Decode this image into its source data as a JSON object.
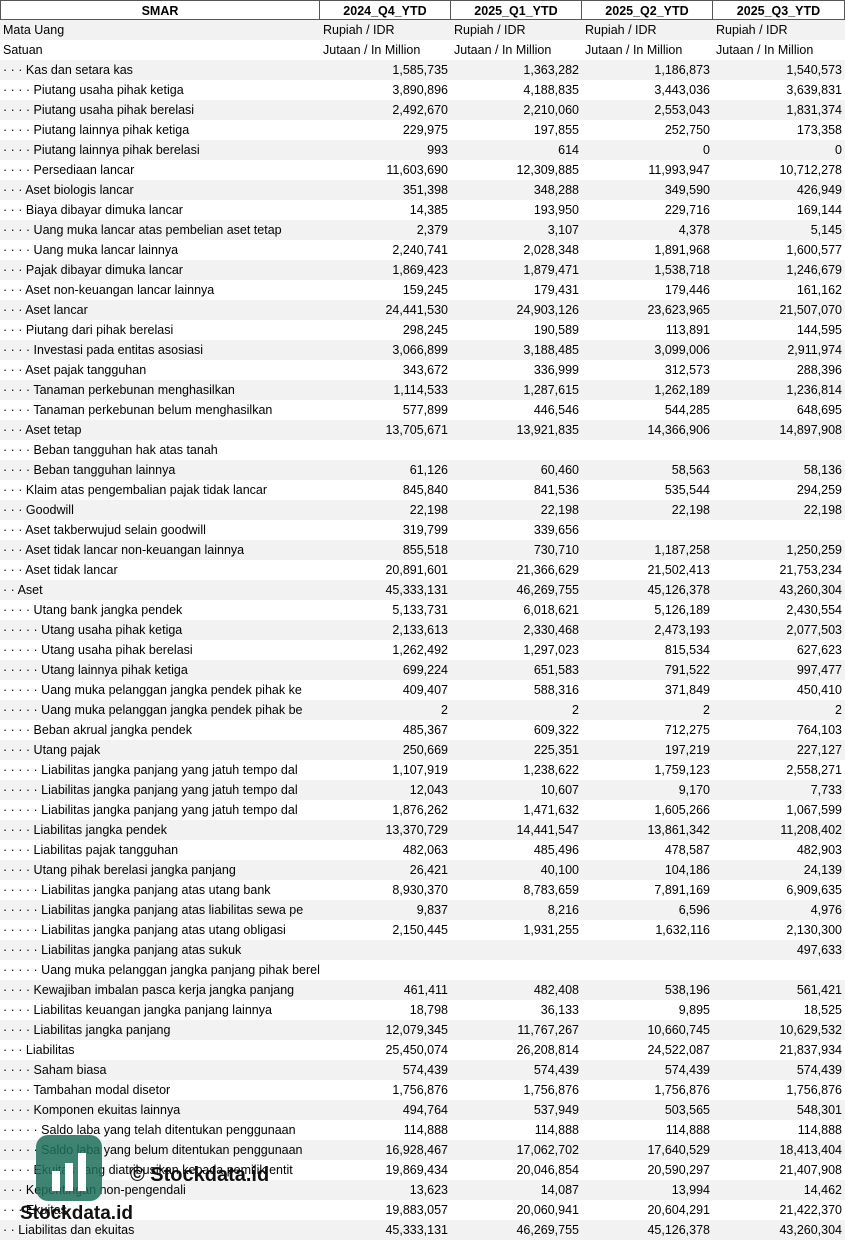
{
  "table": {
    "header": [
      "SMAR",
      "2024_Q4_YTD",
      "2025_Q1_YTD",
      "2025_Q2_YTD",
      "2025_Q3_YTD"
    ],
    "meta": [
      [
        "Mata Uang",
        "Rupiah / IDR",
        "Rupiah / IDR",
        "Rupiah / IDR",
        "Rupiah / IDR"
      ],
      [
        "Satuan",
        "Jutaan / In Million",
        "Jutaan / In Million",
        "Jutaan / In Million",
        "Jutaan / In Million"
      ]
    ],
    "rows": [
      [
        "· · · Kas dan setara kas",
        "1,585,735",
        "1,363,282",
        "1,186,873",
        "1,540,573"
      ],
      [
        "· · · · Piutang usaha pihak ketiga",
        "3,890,896",
        "4,188,835",
        "3,443,036",
        "3,639,831"
      ],
      [
        "· · · · Piutang usaha pihak berelasi",
        "2,492,670",
        "2,210,060",
        "2,553,043",
        "1,831,374"
      ],
      [
        "· · · · Piutang lainnya pihak ketiga",
        "229,975",
        "197,855",
        "252,750",
        "173,358"
      ],
      [
        "· · · · Piutang lainnya pihak berelasi",
        "993",
        "614",
        "0",
        "0"
      ],
      [
        "· · · · Persediaan lancar",
        "11,603,690",
        "12,309,885",
        "11,993,947",
        "10,712,278"
      ],
      [
        "· · · Aset biologis lancar",
        "351,398",
        "348,288",
        "349,590",
        "426,949"
      ],
      [
        "· · · Biaya dibayar dimuka lancar",
        "14,385",
        "193,950",
        "229,716",
        "169,144"
      ],
      [
        "· · · · Uang muka lancar atas pembelian aset tetap",
        "2,379",
        "3,107",
        "4,378",
        "5,145"
      ],
      [
        "· · · · Uang muka lancar lainnya",
        "2,240,741",
        "2,028,348",
        "1,891,968",
        "1,600,577"
      ],
      [
        "· · · Pajak dibayar dimuka lancar",
        "1,869,423",
        "1,879,471",
        "1,538,718",
        "1,246,679"
      ],
      [
        "· · · Aset non-keuangan lancar lainnya",
        "159,245",
        "179,431",
        "179,446",
        "161,162"
      ],
      [
        "· · · Aset lancar",
        "24,441,530",
        "24,903,126",
        "23,623,965",
        "21,507,070"
      ],
      [
        "· · · Piutang dari pihak berelasi",
        "298,245",
        "190,589",
        "113,891",
        "144,595"
      ],
      [
        "· · · · Investasi pada entitas asosiasi",
        "3,066,899",
        "3,188,485",
        "3,099,006",
        "2,911,974"
      ],
      [
        "· · · Aset pajak tangguhan",
        "343,672",
        "336,999",
        "312,573",
        "288,396"
      ],
      [
        "· · · · Tanaman perkebunan menghasilkan",
        "1,114,533",
        "1,287,615",
        "1,262,189",
        "1,236,814"
      ],
      [
        "· · · · Tanaman perkebunan belum menghasilkan",
        "577,899",
        "446,546",
        "544,285",
        "648,695"
      ],
      [
        "· · · Aset tetap",
        "13,705,671",
        "13,921,835",
        "14,366,906",
        "14,897,908"
      ],
      [
        "· · · · Beban tangguhan hak atas tanah",
        null,
        null,
        null,
        null
      ],
      [
        "· · · · Beban tangguhan lainnya",
        "61,126",
        "60,460",
        "58,563",
        "58,136"
      ],
      [
        "· · · Klaim atas pengembalian pajak tidak lancar",
        "845,840",
        "841,536",
        "535,544",
        "294,259"
      ],
      [
        "· · · Goodwill",
        "22,198",
        "22,198",
        "22,198",
        "22,198"
      ],
      [
        "· · · Aset takberwujud selain goodwill",
        "319,799",
        "339,656",
        null,
        null
      ],
      [
        "· · · Aset tidak lancar non-keuangan lainnya",
        "855,518",
        "730,710",
        "1,187,258",
        "1,250,259"
      ],
      [
        "· · · Aset tidak lancar",
        "20,891,601",
        "21,366,629",
        "21,502,413",
        "21,753,234"
      ],
      [
        "· · Aset",
        "45,333,131",
        "46,269,755",
        "45,126,378",
        "43,260,304"
      ],
      [
        "· · · · Utang bank jangka pendek",
        "5,133,731",
        "6,018,621",
        "5,126,189",
        "2,430,554"
      ],
      [
        "· · · · · Utang usaha pihak ketiga",
        "2,133,613",
        "2,330,468",
        "2,473,193",
        "2,077,503"
      ],
      [
        "· · · · · Utang usaha pihak berelasi",
        "1,262,492",
        "1,297,023",
        "815,534",
        "627,623"
      ],
      [
        "· · · · · Utang lainnya pihak ketiga",
        "699,224",
        "651,583",
        "791,522",
        "997,477"
      ],
      [
        "· · · · · Uang muka pelanggan jangka pendek pihak ke",
        "409,407",
        "588,316",
        "371,849",
        "450,410"
      ],
      [
        "· · · · · Uang muka pelanggan jangka pendek pihak be",
        "2",
        "2",
        "2",
        "2"
      ],
      [
        "· · · · Beban akrual jangka pendek",
        "485,367",
        "609,322",
        "712,275",
        "764,103"
      ],
      [
        "· · · · Utang pajak",
        "250,669",
        "225,351",
        "197,219",
        "227,127"
      ],
      [
        "· · · · · Liabilitas jangka panjang yang jatuh tempo dal",
        "1,107,919",
        "1,238,622",
        "1,759,123",
        "2,558,271"
      ],
      [
        "· · · · · Liabilitas jangka panjang yang jatuh tempo dal",
        "12,043",
        "10,607",
        "9,170",
        "7,733"
      ],
      [
        "· · · · · Liabilitas jangka panjang yang jatuh tempo dal",
        "1,876,262",
        "1,471,632",
        "1,605,266",
        "1,067,599"
      ],
      [
        "· · · · Liabilitas jangka pendek",
        "13,370,729",
        "14,441,547",
        "13,861,342",
        "11,208,402"
      ],
      [
        "· · · · Liabilitas pajak tangguhan",
        "482,063",
        "485,496",
        "478,587",
        "482,903"
      ],
      [
        "· · · · Utang pihak berelasi jangka panjang",
        "26,421",
        "40,100",
        "104,186",
        "24,139"
      ],
      [
        "· · · · · Liabilitas jangka panjang atas utang bank",
        "8,930,370",
        "8,783,659",
        "7,891,169",
        "6,909,635"
      ],
      [
        "· · · · · Liabilitas jangka panjang atas liabilitas sewa pe",
        "9,837",
        "8,216",
        "6,596",
        "4,976"
      ],
      [
        "· · · · · Liabilitas jangka panjang atas utang obligasi",
        "2,150,445",
        "1,931,255",
        "1,632,116",
        "2,130,300"
      ],
      [
        "· · · · · Liabilitas jangka panjang atas sukuk",
        null,
        null,
        null,
        "497,633"
      ],
      [
        "· · · · · Uang muka pelanggan jangka panjang pihak berelasi",
        null,
        null,
        null,
        null
      ],
      [
        "· · · · Kewajiban imbalan pasca kerja jangka panjang",
        "461,411",
        "482,408",
        "538,196",
        "561,421"
      ],
      [
        "· · · · Liabilitas keuangan jangka panjang lainnya",
        "18,798",
        "36,133",
        "9,895",
        "18,525"
      ],
      [
        "· · · · Liabilitas jangka panjang",
        "12,079,345",
        "11,767,267",
        "10,660,745",
        "10,629,532"
      ],
      [
        "· · · Liabilitas",
        "25,450,074",
        "26,208,814",
        "24,522,087",
        "21,837,934"
      ],
      [
        "· · · · Saham biasa",
        "574,439",
        "574,439",
        "574,439",
        "574,439"
      ],
      [
        "· · · · Tambahan modal disetor",
        "1,756,876",
        "1,756,876",
        "1,756,876",
        "1,756,876"
      ],
      [
        "· · · · Komponen ekuitas lainnya",
        "494,764",
        "537,949",
        "503,565",
        "548,301"
      ],
      [
        "· · · · · Saldo laba yang telah ditentukan penggunaan",
        "114,888",
        "114,888",
        "114,888",
        "114,888"
      ],
      [
        "· · · · · Saldo laba yang belum ditentukan penggunaan",
        "16,928,467",
        "17,062,702",
        "17,640,529",
        "18,413,404"
      ],
      [
        "· · · · Ekuitas yang diatribusikan kepada pemilik entit",
        "19,869,434",
        "20,046,854",
        "20,590,297",
        "21,407,908"
      ],
      [
        "· · · Kepentingan non-pengendali",
        "13,623",
        "14,087",
        "13,994",
        "14,462"
      ],
      [
        "· · · Ekuitas",
        "19,883,057",
        "20,060,941",
        "20,604,291",
        "21,422,370"
      ],
      [
        "· · Liabilitas dan ekuitas",
        "45,333,131",
        "46,269,755",
        "45,126,378",
        "43,260,304"
      ]
    ]
  },
  "watermark": {
    "copyright": "© Stockdata.id",
    "brand": "Stockdata.id"
  }
}
